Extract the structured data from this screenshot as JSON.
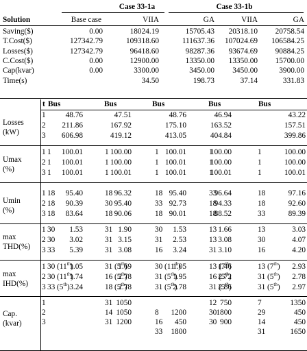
{
  "cases": {
    "a": "Case 33-1a",
    "b": "Case 33-1b"
  },
  "top": {
    "header": [
      "Solution",
      "Base case",
      "VIIA",
      "GA",
      "VIIA",
      "GA"
    ],
    "rows": [
      {
        "label": "Saving($)",
        "vals": [
          "0.00",
          "18024.19",
          "15705.43",
          "20318.10",
          "20758.54"
        ]
      },
      {
        "label": "T.Cost($)",
        "vals": [
          "127342.79",
          "109318.60",
          "111637.36",
          "107024.69",
          "106584.25"
        ]
      },
      {
        "label": "Losses($)",
        "vals": [
          "127342.79",
          "96418.60",
          "98287.36",
          "93674.69",
          "90884.25"
        ]
      },
      {
        "label": "C.Cost($)",
        "vals": [
          "0.00",
          "12900.00",
          "13350.00",
          "13350.00",
          "15700.00"
        ]
      },
      {
        "label": "Cap(kvar)",
        "vals": [
          "0.00",
          "3300.00",
          "3450.00",
          "3450.00",
          "3900.00"
        ]
      },
      {
        "label": "Time(s)",
        "vals": [
          "",
          "34.50",
          "198.73",
          "37.14",
          "331.83"
        ]
      }
    ]
  },
  "sub_header": {
    "t": "t",
    "bus": "Bus"
  },
  "groups": [
    {
      "label": [
        "Losses",
        "(kW)"
      ],
      "rows": [
        {
          "t": "1",
          "b0": "",
          "v0": "48.76",
          "b1": "",
          "v1": "47.51",
          "b2": "",
          "v2": "48.76",
          "b3": "",
          "v3": "46.94",
          "b4": "",
          "v4": "43.22"
        },
        {
          "t": "2",
          "b0": "",
          "v0": "211.86",
          "b1": "",
          "v1": "167.92",
          "b2": "",
          "v2": "175.10",
          "b3": "",
          "v3": "163.52",
          "b4": "",
          "v4": "157.51"
        },
        {
          "t": "3",
          "b0": "",
          "v0": "606.98",
          "b1": "",
          "v1": "419.12",
          "b2": "",
          "v2": "413.05",
          "b3": "",
          "v3": "404.84",
          "b4": "",
          "v4": "399.86"
        }
      ]
    },
    {
      "label": [
        "Umax",
        "(%)"
      ],
      "rows": [
        {
          "t": "1",
          "b0": "1",
          "v0": "100.01",
          "b1": "1",
          "v1": "100.00",
          "b2": "1",
          "v2": "100.01",
          "b3": "1",
          "v3": "100.00",
          "b4": "1",
          "v4": "100.00"
        },
        {
          "t": "2",
          "b0": "1",
          "v0": "100.01",
          "b1": "1",
          "v1": "100.00",
          "b2": "1",
          "v2": "100.01",
          "b3": "1",
          "v3": "100.00",
          "b4": "1",
          "v4": "100.00"
        },
        {
          "t": "3",
          "b0": "1",
          "v0": "100.01",
          "b1": "1",
          "v1": "100.01",
          "b2": "1",
          "v2": "100.01",
          "b3": "1",
          "v3": "100.01",
          "b4": "1",
          "v4": "100.01"
        }
      ]
    },
    {
      "label": [
        "Umin",
        "(%)"
      ],
      "rows": [
        {
          "t": "1",
          "b0": "18",
          "v0": "95.40",
          "b1": "18",
          "v1": "96.32",
          "b2": "18",
          "v2": "95.40",
          "b3": "33",
          "v3": "96.64",
          "b4": "18",
          "v4": "97.16"
        },
        {
          "t": "2",
          "b0": "18",
          "v0": "90.39",
          "b1": "30",
          "v1": "95.40",
          "b2": "33",
          "v2": "92.73",
          "b3": "18",
          "v3": "94.33",
          "b4": "18",
          "v4": "92.60"
        },
        {
          "t": "3",
          "b0": "18",
          "v0": "83.64",
          "b1": "18",
          "v1": "90.06",
          "b2": "18",
          "v2": "90.01",
          "b3": "18",
          "v3": "88.52",
          "b4": "33",
          "v4": "89.39"
        }
      ]
    },
    {
      "label": [
        "max",
        "THD(%)"
      ],
      "rows": [
        {
          "t": "1",
          "b0": "30",
          "v0": "1.53",
          "b1": "31",
          "v1": "1.90",
          "b2": "30",
          "v2": "1.53",
          "b3": "13",
          "v3": "1.66",
          "b4": "13",
          "v4": "3.03"
        },
        {
          "t": "2",
          "b0": "30",
          "v0": "3.02",
          "b1": "31",
          "v1": "3.15",
          "b2": "31",
          "v2": "2.53",
          "b3": "13",
          "v3": "3.08",
          "b4": "30",
          "v4": "4.07"
        },
        {
          "t": "3",
          "b0": "33",
          "v0": "5.39",
          "b1": "31",
          "v1": "3.08",
          "b2": "16",
          "v2": "3.24",
          "b3": "31",
          "v3": "3.10",
          "b4": "16",
          "v4": "4.20"
        }
      ]
    },
    {
      "label": [
        "max",
        "IHD(%)"
      ],
      "rows": [
        {
          "t": "1",
          "b0": "30",
          "o0": "11",
          "v0": "1.05",
          "b1": "31",
          "o1": "5",
          "v1": "1.69",
          "b2": "30",
          "o2": "11",
          "v2": "1.05",
          "b3": "13",
          "o3": "7",
          "v3": "1.46",
          "b4": "13",
          "o4": "7",
          "v4": "2.93"
        },
        {
          "t": "2",
          "b0": "30",
          "o0": "11",
          "v0": "1.74",
          "b1": "16",
          "o1": "5",
          "v1": "2.78",
          "b2": "31",
          "o2": "5",
          "v2": "1.95",
          "b3": "16",
          "o3": "5",
          "v3": "2.72",
          "b4": "31",
          "o4": "5",
          "v4": "2.78"
        },
        {
          "t": "3",
          "b0": "33",
          "o0": "5",
          "v0": "3.24",
          "b1": "18",
          "o1": "5",
          "v1": "2.78",
          "b2": "31",
          "o2": "5",
          "v2": "2.78",
          "b3": "31",
          "o3": "5",
          "v3": "2.86",
          "b4": "31",
          "o4": "5",
          "v4": "2.97"
        }
      ]
    },
    {
      "label": [
        "Cap.",
        "(kvar)"
      ],
      "rows": [
        {
          "t": "1",
          "b0": "",
          "v0": "",
          "b1": "31",
          "v1": "1050",
          "b2": "",
          "v2": "",
          "b3": "12",
          "v3": "750",
          "b4": "7",
          "v4": "1350"
        },
        {
          "t": "2",
          "b0": "",
          "v0": "",
          "b1": "14",
          "v1": "1050",
          "b2": "8",
          "v2": "1200",
          "b3": "30",
          "v3": "1800",
          "b4": "29",
          "v4": "450"
        },
        {
          "t": "3",
          "b0": "",
          "v0": "",
          "b1": "31",
          "v1": "1200",
          "b2": "16",
          "v2": "450",
          "b3": "30",
          "v3": "900",
          "b4": "14",
          "v4": "450"
        },
        {
          "t": "",
          "b0": "",
          "v0": "",
          "b1": "",
          "v1": "",
          "b2": "33",
          "v2": "1800",
          "b3": "",
          "v3": "",
          "b4": "31",
          "v4": "1650"
        }
      ]
    }
  ]
}
